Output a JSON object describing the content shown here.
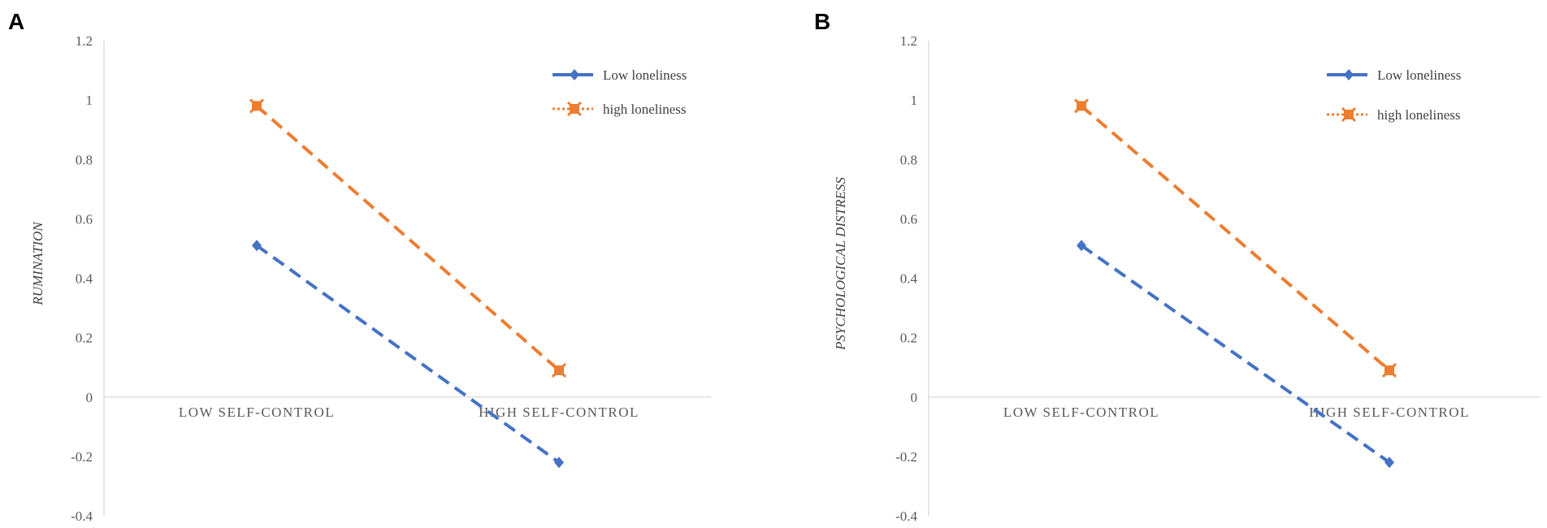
{
  "chart_data": [
    {
      "panel": "A",
      "type": "line",
      "ylabel": "RUMINATION",
      "xlabel": "",
      "categories": [
        "LOW SELF-CONTROL",
        "HIGH SELF-CONTROL"
      ],
      "ylim": [
        -0.4,
        1.2
      ],
      "yticks": [
        "1.2",
        "1",
        "0.8",
        "0.6",
        "0.4",
        "0.2",
        "0",
        "-0.2",
        "-0.4"
      ],
      "legend_position": "top-right",
      "series": [
        {
          "name": "Low loneliness",
          "values": [
            0.51,
            -0.22
          ],
          "color": "#4472C4",
          "marker": "diamond"
        },
        {
          "name": "high loneliness",
          "values": [
            0.98,
            0.09
          ],
          "color": "#ED7D31",
          "marker": "square"
        }
      ]
    },
    {
      "panel": "B",
      "type": "line",
      "ylabel": "PSYCHOLOGICAL DISTRESS",
      "xlabel": "",
      "categories": [
        "LOW SELF-CONTROL",
        "HIGH SELF-CONTROL"
      ],
      "ylim": [
        -0.4,
        1.2
      ],
      "yticks": [
        "1.2",
        "1",
        "0.8",
        "0.6",
        "0.4",
        "0.2",
        "0",
        "-0.2",
        "-0.4"
      ],
      "legend_position": "top-right",
      "series": [
        {
          "name": "Low loneliness",
          "values": [
            0.51,
            -0.22
          ],
          "color": "#4472C4",
          "marker": "diamond"
        },
        {
          "name": "high loneliness",
          "values": [
            0.98,
            0.09
          ],
          "color": "#ED7D31",
          "marker": "square"
        }
      ]
    }
  ]
}
